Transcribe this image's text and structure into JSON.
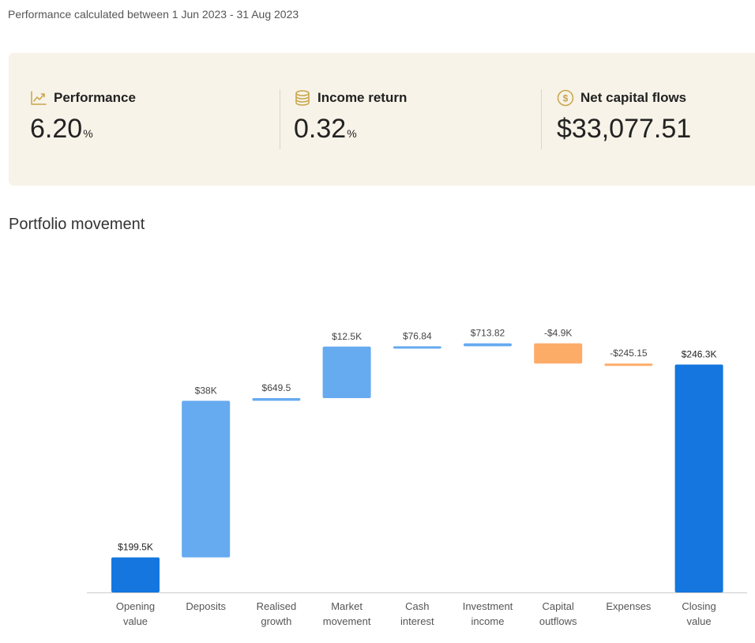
{
  "header": {
    "subtitle": "Performance calculated between 1 Jun 2023 - 31 Aug 2023"
  },
  "summary": {
    "background": "#f7f3e8",
    "accent_color": "#c9a54a",
    "metrics": [
      {
        "icon": "trend-up-icon",
        "label": "Performance",
        "value": "6.20",
        "unit": "%"
      },
      {
        "icon": "coin-stack-icon",
        "label": "Income return",
        "value": "0.32",
        "unit": "%"
      },
      {
        "icon": "dollar-coin-icon",
        "label": "Net capital flows",
        "value": "$33,077.51",
        "unit": ""
      }
    ]
  },
  "section": {
    "title": "Portfolio movement"
  },
  "chart_data": {
    "type": "bar",
    "subtype": "waterfall",
    "title": "",
    "xlabel": "",
    "ylabel": "",
    "grid": false,
    "ylim": [
      0,
      260000
    ],
    "colors": {
      "total": "#1476de",
      "increase": "#66aaf0",
      "decrease": "#fdac68"
    },
    "bars": [
      {
        "category": [
          "Opening",
          "value"
        ],
        "kind": "total",
        "start": 0,
        "end": 199500,
        "label": "$199.5K"
      },
      {
        "category": [
          "Deposits"
        ],
        "kind": "increase",
        "start": 199500,
        "end": 237500,
        "label": "$38K"
      },
      {
        "category": [
          "Realised",
          "growth"
        ],
        "kind": "increase",
        "start": 237500,
        "end": 238149.5,
        "label": "$649.5"
      },
      {
        "category": [
          "Market",
          "movement"
        ],
        "kind": "increase",
        "start": 238149.5,
        "end": 250649.5,
        "label": "$12.5K"
      },
      {
        "category": [
          "Cash",
          "interest"
        ],
        "kind": "increase",
        "start": 250649.5,
        "end": 250726.34,
        "label": "$76.84"
      },
      {
        "category": [
          "Investment",
          "income"
        ],
        "kind": "increase",
        "start": 250726.34,
        "end": 251440.16,
        "label": "$713.82"
      },
      {
        "category": [
          "Capital",
          "outflows"
        ],
        "kind": "decrease",
        "start": 251440.16,
        "end": 246540.16,
        "label": "-$4.9K"
      },
      {
        "category": [
          "Expenses"
        ],
        "kind": "decrease",
        "start": 246540.16,
        "end": 246295.01,
        "label": "-$245.15"
      },
      {
        "category": [
          "Closing",
          "value"
        ],
        "kind": "total",
        "start": 0,
        "end": 246300,
        "label": "$246.3K"
      }
    ]
  }
}
